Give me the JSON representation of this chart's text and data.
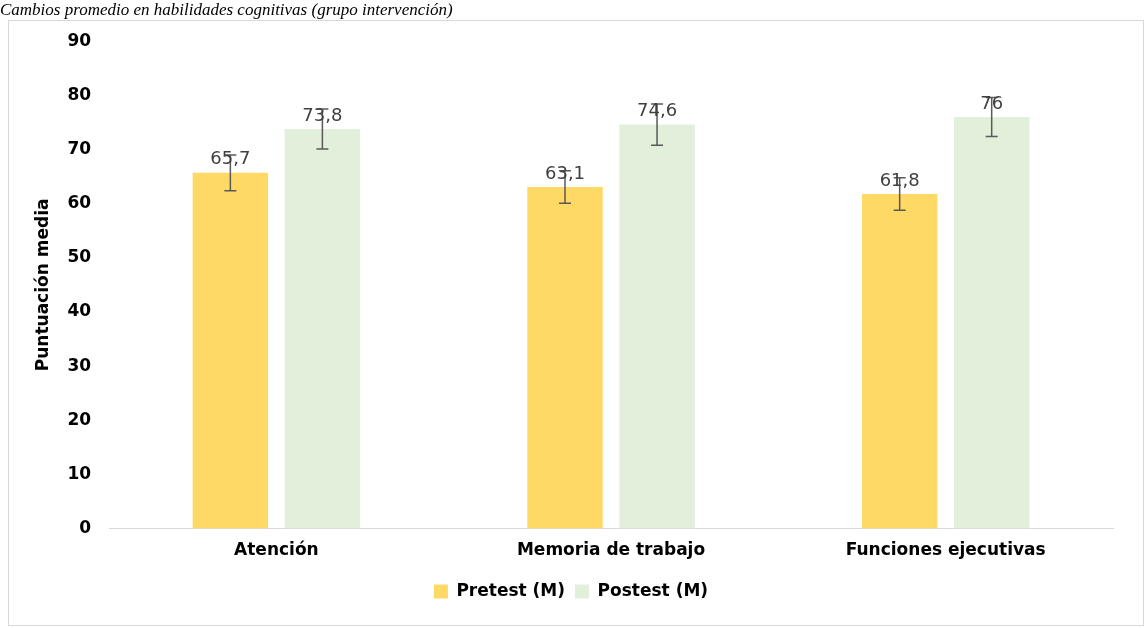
{
  "chart_data": {
    "type": "bar",
    "title": "Cambios promedio en habilidades cognitivas (grupo intervención)",
    "ylabel": "Puntuación media",
    "categories": [
      "Atención",
      "Memoria de trabajo",
      "Funciones ejecutivas"
    ],
    "series": [
      {
        "name": "Pretest (M)",
        "color": "#ffd966",
        "values": [
          65.7,
          63.1,
          61.8
        ],
        "value_labels": [
          "65,7",
          "63,1",
          "61,8"
        ],
        "errors": [
          3.3,
          3.0,
          3.0
        ]
      },
      {
        "name": "Postest (M)",
        "color": "#e2efda",
        "values": [
          73.8,
          74.6,
          76
        ],
        "value_labels": [
          "73,8",
          "74,6",
          "76"
        ],
        "errors": [
          3.7,
          3.8,
          3.6
        ]
      }
    ],
    "ylim": [
      0,
      90
    ],
    "yticks": [
      0,
      10,
      20,
      30,
      40,
      50,
      60,
      70,
      80,
      90
    ],
    "grid": false,
    "legend": "bottom"
  }
}
